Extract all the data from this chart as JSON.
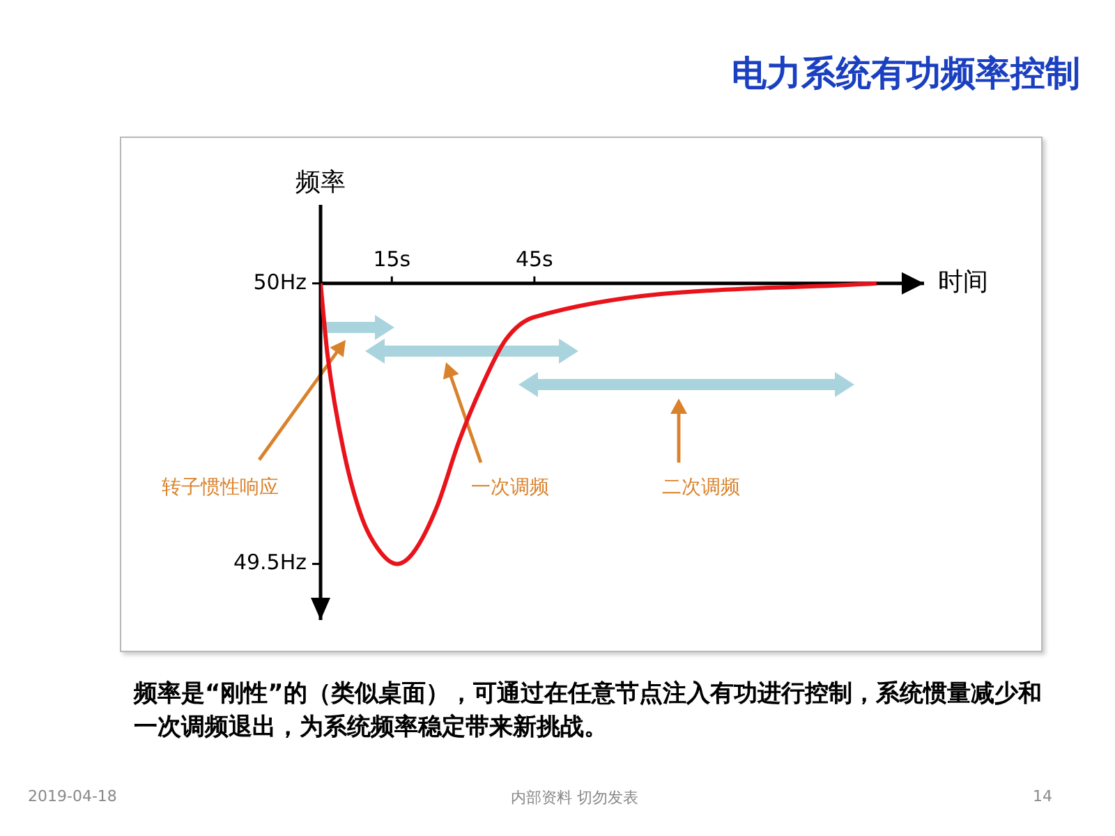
{
  "chart_data": {
    "type": "line",
    "title": "电力系统有功频率控制",
    "xlabel": "时间",
    "ylabel": "频率",
    "x": [
      0,
      1.5,
      4.9,
      8.8,
      12.7,
      16.1,
      19.5,
      24.4,
      29.2,
      34.1,
      39,
      45,
      117
    ],
    "values": [
      50,
      49.87,
      49.7,
      49.58,
      49.52,
      49.5,
      49.52,
      49.6,
      49.72,
      49.82,
      49.9,
      49.94,
      50
    ],
    "color": "#e8131b",
    "marker": "none",
    "xlim": [
      0,
      127
    ],
    "ylim": [
      49.4,
      50.14
    ],
    "xticks": [
      {
        "value": 15,
        "label": "15s"
      },
      {
        "value": 45,
        "label": "45s"
      }
    ],
    "yticks": [
      {
        "value": 50,
        "label": "50Hz"
      },
      {
        "value": 49.5,
        "label": "49.5Hz"
      }
    ],
    "annotations": [
      "转子惯性响应",
      "一次调频",
      "二次调频",
      "频率是“刚性”的（类似桌面），可通过在任意节点注入有功进行控制，系统惯量减少和一次调频退出，为系统频率稳定带来新挑战。",
      "2019-04-18",
      "内部资料 切勿发表",
      "14"
    ]
  }
}
